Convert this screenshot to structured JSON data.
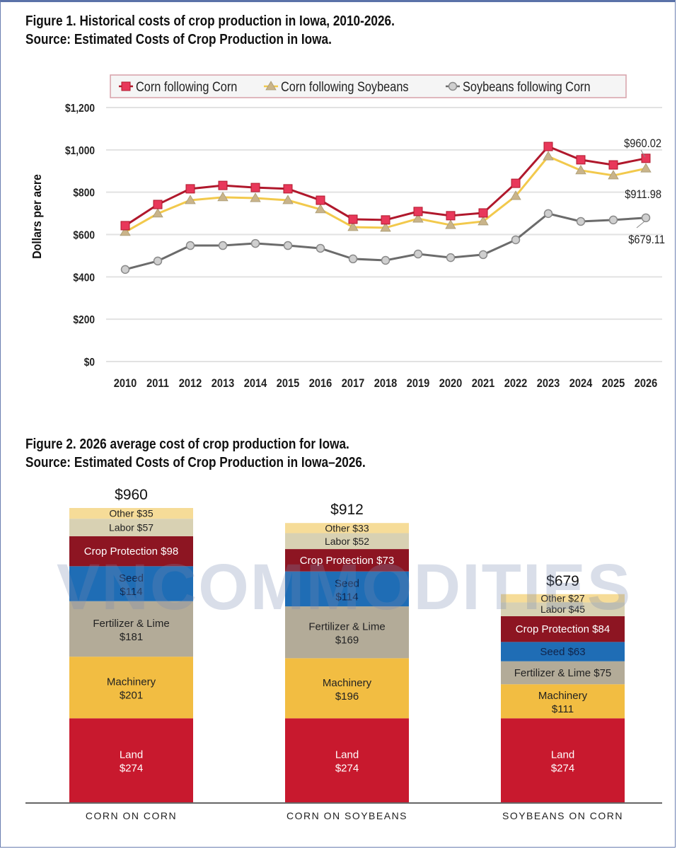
{
  "watermark": "VNCOMMODITIES",
  "chart_data": [
    {
      "type": "line",
      "title": "Figure 1. Historical costs of crop production in Iowa, 2010-2026.",
      "subtitle": "Source: Estimated Costs of Crop Production in Iowa.",
      "xlabel": "",
      "ylabel": "Dollars per acre",
      "ylim": [
        0,
        1200
      ],
      "yticks": [
        0,
        200,
        400,
        600,
        800,
        1000,
        1200
      ],
      "ytick_labels": [
        "$0",
        "$200",
        "$400",
        "$600",
        "$800",
        "$1,000",
        "$1,200"
      ],
      "grid": true,
      "legend_position": "top",
      "x": [
        "2010",
        "2011",
        "2012",
        "2013",
        "2014",
        "2015",
        "2016",
        "2017",
        "2018",
        "2019",
        "2020",
        "2021",
        "2022",
        "2023",
        "2024",
        "2025",
        "2026"
      ],
      "series": [
        {
          "name": "Corn following Corn",
          "color": "#e8385a",
          "line_color": "#b0182c",
          "marker": "square",
          "values": [
            642,
            742,
            816,
            832,
            822,
            816,
            762,
            672,
            669,
            709,
            689,
            702,
            842,
            1016,
            953,
            929,
            960.02
          ]
        },
        {
          "name": "Corn following Soybeans",
          "color": "#c9b48a",
          "line_color": "#f2c94c",
          "marker": "triangle",
          "values": [
            612,
            699,
            762,
            776,
            772,
            762,
            719,
            635,
            632,
            675,
            645,
            662,
            782,
            969,
            903,
            879,
            911.98
          ]
        },
        {
          "name": "Soybeans following Corn",
          "color": "#cfcfcf",
          "line_color": "#6b6b6b",
          "marker": "circle",
          "values": [
            435,
            475,
            548,
            548,
            558,
            548,
            535,
            485,
            478,
            508,
            491,
            505,
            575,
            699,
            662,
            669,
            679.11
          ]
        }
      ],
      "annotations": [
        "$960.02",
        "$911.98",
        "$679.11"
      ]
    },
    {
      "type": "bar",
      "stacked": true,
      "title": "Figure 2. 2026 average cost of crop production for Iowa.",
      "subtitle": "Source: Estimated Costs of Crop Production in Iowa–2026.",
      "categories": [
        "CORN ON CORN",
        "CORN ON SOYBEANS",
        "SOYBEANS ON CORN"
      ],
      "totals": [
        960,
        912,
        679
      ],
      "total_labels": [
        "$960",
        "$912",
        "$679"
      ],
      "series": [
        {
          "name": "Land",
          "color": "#c8192e",
          "text_color": "#ffffff",
          "values": [
            274,
            274,
            274
          ]
        },
        {
          "name": "Machinery",
          "color": "#f2bd42",
          "text_color": "#222222",
          "values": [
            201,
            196,
            111
          ]
        },
        {
          "name": "Fertilizer & Lime",
          "color": "#b3ab98",
          "text_color": "#222222",
          "values": [
            181,
            169,
            75
          ]
        },
        {
          "name": "Seed",
          "color": "#1f6db5",
          "text_color": "#10244a",
          "values": [
            114,
            114,
            63
          ]
        },
        {
          "name": "Crop Protection",
          "color": "#8d1522",
          "text_color": "#ffffff",
          "values": [
            98,
            73,
            84
          ]
        },
        {
          "name": "Labor",
          "color": "#d8d1b3",
          "text_color": "#222222",
          "values": [
            57,
            52,
            45
          ]
        },
        {
          "name": "Other",
          "color": "#f6dc98",
          "text_color": "#222222",
          "values": [
            35,
            33,
            27
          ]
        }
      ]
    }
  ]
}
